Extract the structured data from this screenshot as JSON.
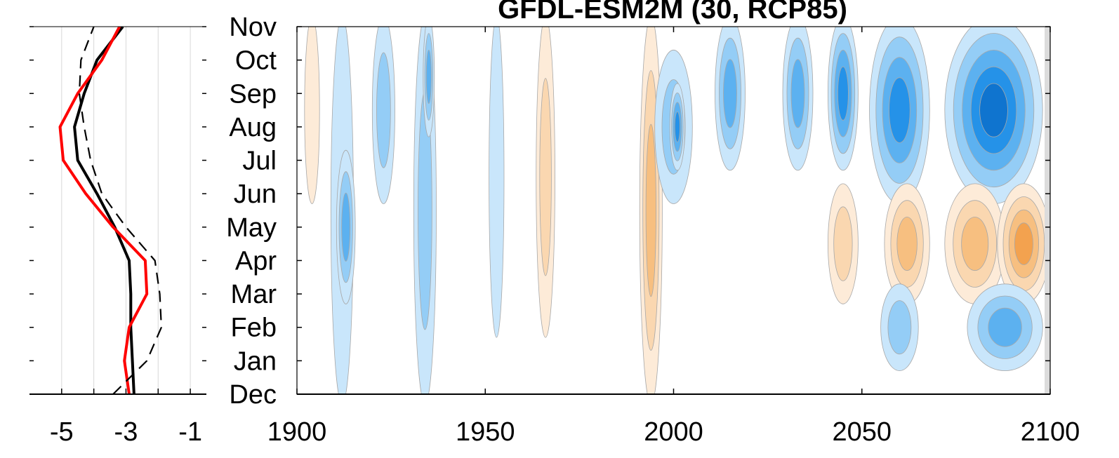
{
  "chart_data": [
    {
      "type": "line",
      "xlim": [
        -6,
        -0.5
      ],
      "xticks": [
        -5,
        -3,
        -1
      ],
      "xtick_labels": [
        "-5",
        "-3",
        "-1"
      ],
      "grid": "vertical",
      "y_categories": [
        "Dec",
        "Jan",
        "Feb",
        "Mar",
        "Apr",
        "May",
        "Jun",
        "Jul",
        "Aug",
        "Sep",
        "Oct",
        "Nov"
      ],
      "series": [
        {
          "color": "#000000",
          "style": "solid",
          "values": [
            -2.75,
            -2.8,
            -2.85,
            -2.85,
            -2.9,
            -3.35,
            -3.9,
            -4.5,
            -4.6,
            -4.3,
            -3.9,
            -3.1
          ]
        },
        {
          "color": "#ff0000",
          "style": "solid",
          "values": [
            -2.9,
            -3.05,
            -2.9,
            -2.35,
            -2.4,
            -3.4,
            -4.25,
            -4.95,
            -5.05,
            -4.5,
            -3.75,
            -3.2
          ]
        },
        {
          "color": "#000000",
          "style": "dashed",
          "values": [
            -3.4,
            -2.35,
            -1.9,
            -1.95,
            -2.1,
            -3.0,
            -3.75,
            -4.1,
            -4.3,
            -4.45,
            -4.4,
            -4.0
          ]
        }
      ]
    },
    {
      "type": "heatmap",
      "title": "GFDL-ESM2M (30, RCP85)",
      "x_ticks": [
        1900,
        1950,
        2000,
        2050,
        2100
      ],
      "xlim": [
        1900,
        2100
      ],
      "y_categories": [
        "Dec",
        "Jan",
        "Feb",
        "Mar",
        "Apr",
        "May",
        "Jun",
        "Jul",
        "Aug",
        "Sep",
        "Oct",
        "Nov"
      ],
      "colors": {
        "negative": [
          "#c9e6fb",
          "#94cdf6",
          "#5cb1f0",
          "#2592e8",
          "#0f74cf"
        ],
        "positive": [
          "#fdebd8",
          "#fad7b0",
          "#f7bf80",
          "#f3a24f"
        ],
        "contour": "#a8a8a8"
      },
      "features": [
        {
          "x": 1904,
          "months": [
            6,
            11
          ],
          "width": 4,
          "level": 1
        },
        {
          "x": 1912,
          "months": [
            0,
            11
          ],
          "width": 6,
          "level": -1
        },
        {
          "x": 1913,
          "months": [
            3,
            7
          ],
          "width": 5,
          "level": -3
        },
        {
          "x": 1923,
          "months": [
            6,
            11
          ],
          "width": 6,
          "level": -2
        },
        {
          "x": 1934,
          "months": [
            0,
            11
          ],
          "width": 6,
          "level": -2
        },
        {
          "x": 1935,
          "months": [
            8,
            11
          ],
          "width": 3,
          "level": -3
        },
        {
          "x": 1953,
          "months": [
            2,
            11
          ],
          "width": 4,
          "level": -1
        },
        {
          "x": 1966,
          "months": [
            2,
            11
          ],
          "width": 5,
          "level": 2
        },
        {
          "x": 1994,
          "months": [
            0,
            11
          ],
          "width": 6,
          "level": 3
        },
        {
          "x": 2000,
          "months": [
            6,
            10
          ],
          "width": 10,
          "level": -2
        },
        {
          "x": 2001,
          "months": [
            7,
            9
          ],
          "width": 4,
          "level": -4
        },
        {
          "x": 2015,
          "months": [
            7,
            11
          ],
          "width": 8,
          "level": -3
        },
        {
          "x": 2033,
          "months": [
            7,
            11
          ],
          "width": 8,
          "level": -3
        },
        {
          "x": 2045,
          "months": [
            7,
            11
          ],
          "width": 8,
          "level": -4
        },
        {
          "x": 2060,
          "months": [
            6,
            11
          ],
          "width": 16,
          "level": -4
        },
        {
          "x": 2085,
          "months": [
            6,
            11
          ],
          "width": 26,
          "level": -5
        },
        {
          "x": 2045,
          "months": [
            3,
            6
          ],
          "width": 8,
          "level": 2
        },
        {
          "x": 2062,
          "months": [
            3,
            6
          ],
          "width": 12,
          "level": 3
        },
        {
          "x": 2080,
          "months": [
            3,
            6
          ],
          "width": 16,
          "level": 3
        },
        {
          "x": 2093,
          "months": [
            3,
            6
          ],
          "width": 14,
          "level": 4
        },
        {
          "x": 2060,
          "months": [
            1,
            3
          ],
          "width": 10,
          "level": -2
        },
        {
          "x": 2088,
          "months": [
            1,
            3
          ],
          "width": 20,
          "level": -3
        }
      ]
    }
  ]
}
